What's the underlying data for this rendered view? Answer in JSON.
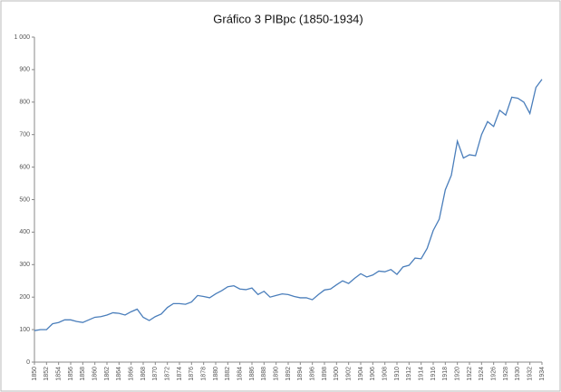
{
  "chart_data": {
    "type": "line",
    "title": "Gráfico 3 PIBpc (1850-1934)",
    "x": [
      1850,
      1851,
      1852,
      1853,
      1854,
      1855,
      1856,
      1857,
      1858,
      1859,
      1860,
      1861,
      1862,
      1863,
      1864,
      1865,
      1866,
      1867,
      1868,
      1869,
      1870,
      1871,
      1872,
      1873,
      1874,
      1875,
      1876,
      1877,
      1878,
      1879,
      1880,
      1881,
      1882,
      1883,
      1884,
      1885,
      1886,
      1887,
      1888,
      1889,
      1890,
      1891,
      1892,
      1893,
      1894,
      1895,
      1896,
      1897,
      1898,
      1899,
      1900,
      1901,
      1902,
      1903,
      1904,
      1905,
      1906,
      1907,
      1908,
      1909,
      1910,
      1911,
      1912,
      1913,
      1914,
      1915,
      1916,
      1917,
      1918,
      1919,
      1920,
      1921,
      1922,
      1923,
      1924,
      1925,
      1926,
      1927,
      1928,
      1929,
      1930,
      1931,
      1932,
      1933,
      1934
    ],
    "values": [
      97,
      100,
      100,
      118,
      122,
      130,
      130,
      125,
      122,
      130,
      138,
      140,
      145,
      152,
      150,
      145,
      155,
      163,
      138,
      128,
      140,
      148,
      168,
      180,
      180,
      178,
      185,
      205,
      202,
      198,
      210,
      220,
      232,
      235,
      225,
      223,
      228,
      208,
      218,
      200,
      205,
      210,
      208,
      202,
      198,
      198,
      192,
      208,
      222,
      225,
      238,
      250,
      242,
      258,
      272,
      262,
      268,
      280,
      278,
      285,
      270,
      293,
      298,
      320,
      318,
      350,
      405,
      440,
      530,
      575,
      680,
      628,
      638,
      635,
      700,
      740,
      725,
      775,
      760,
      815,
      812,
      800,
      765,
      845,
      870
    ],
    "color": "#4a7ebb",
    "xlim": [
      1850,
      1934
    ],
    "xticks": [
      1850,
      1852,
      1854,
      1856,
      1858,
      1860,
      1862,
      1864,
      1866,
      1868,
      1870,
      1872,
      1874,
      1876,
      1878,
      1880,
      1882,
      1884,
      1886,
      1888,
      1890,
      1892,
      1894,
      1896,
      1898,
      1900,
      1902,
      1904,
      1906,
      1908,
      1910,
      1912,
      1914,
      1916,
      1918,
      1920,
      1922,
      1924,
      1926,
      1928,
      1930,
      1932,
      1934
    ],
    "ylim": [
      0,
      1000
    ],
    "yticks": [
      0,
      100,
      200,
      300,
      400,
      500,
      600,
      700,
      800,
      900,
      {
        "value": 1000,
        "label": "1 000"
      }
    ],
    "grid": false
  }
}
